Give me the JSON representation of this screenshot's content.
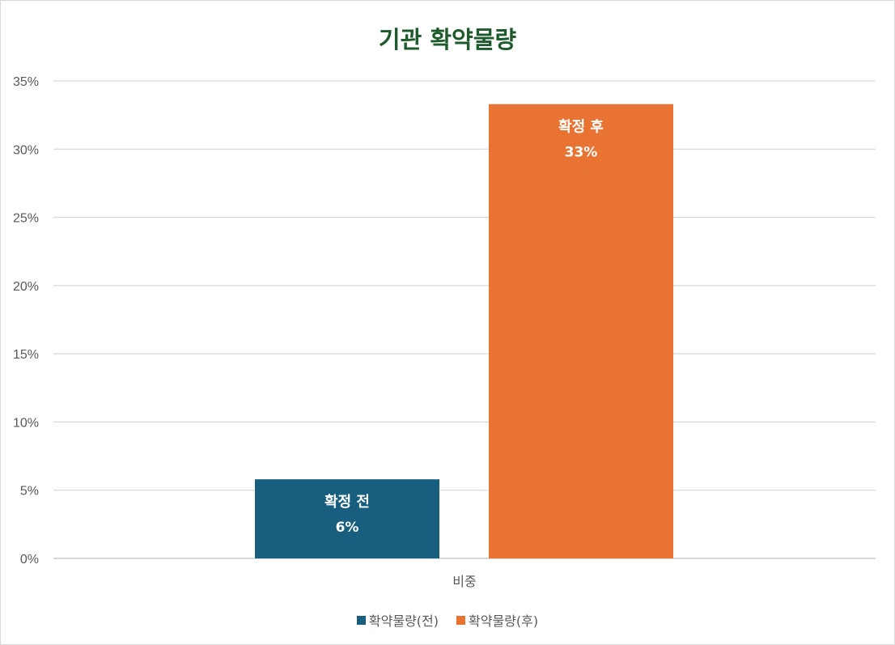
{
  "chart_data": {
    "type": "bar",
    "title": "기관 확약물량",
    "categories": [
      "비중"
    ],
    "series": [
      {
        "name": "확약물량(전)",
        "values": [
          5.8
        ],
        "label_line1": "확정 전",
        "label_line2": "6%",
        "color": "#175e7f"
      },
      {
        "name": "확약물량(후)",
        "values": [
          33.3
        ],
        "label_line1": "확정 후",
        "label_line2": "33%",
        "color": "#e87332"
      }
    ],
    "yticks": [
      "0%",
      "5%",
      "10%",
      "15%",
      "20%",
      "25%",
      "30%",
      "35%"
    ],
    "ylim": [
      0,
      35
    ],
    "grid": true,
    "legend": "bottom",
    "xlabel": "",
    "ylabel": ""
  }
}
